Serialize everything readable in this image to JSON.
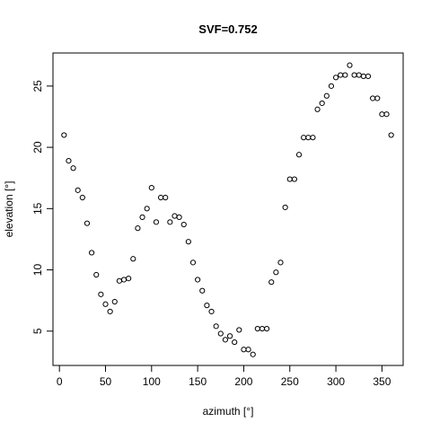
{
  "chart_data": {
    "type": "scatter",
    "title": "SVF=0.752",
    "xlabel": "azimuth [°]",
    "ylabel": "elevation [°]",
    "xlim": [
      -7,
      373
    ],
    "ylim": [
      2.2,
      27.7
    ],
    "xticks": [
      0,
      50,
      100,
      150,
      200,
      250,
      300,
      350
    ],
    "yticks": [
      5,
      10,
      15,
      20,
      25
    ],
    "grid": false,
    "marker": "open-circle",
    "x": [
      5,
      10,
      15,
      20,
      25,
      30,
      35,
      40,
      45,
      50,
      55,
      60,
      65,
      70,
      75,
      80,
      85,
      90,
      95,
      100,
      105,
      110,
      115,
      120,
      125,
      130,
      135,
      140,
      145,
      150,
      155,
      160,
      165,
      170,
      175,
      180,
      185,
      190,
      195,
      200,
      205,
      210,
      215,
      220,
      225,
      230,
      235,
      240,
      245,
      250,
      255,
      260,
      265,
      270,
      275,
      280,
      285,
      290,
      295,
      300,
      305,
      310,
      315,
      320,
      325,
      330,
      335,
      340,
      345,
      350,
      355,
      360
    ],
    "y": [
      21.0,
      18.9,
      18.3,
      16.5,
      15.9,
      13.8,
      11.4,
      9.6,
      8.0,
      7.2,
      6.6,
      7.4,
      9.1,
      9.2,
      9.3,
      10.9,
      13.4,
      14.3,
      15.0,
      16.7,
      13.9,
      15.9,
      15.9,
      13.9,
      14.4,
      14.3,
      13.7,
      12.3,
      10.6,
      9.2,
      8.3,
      7.1,
      6.6,
      5.4,
      4.8,
      4.3,
      4.6,
      4.1,
      5.1,
      3.5,
      3.5,
      3.1,
      5.2,
      5.2,
      5.2,
      9.0,
      9.8,
      10.6,
      15.1,
      17.4,
      17.4,
      19.4,
      20.8,
      20.8,
      20.8,
      23.1,
      23.6,
      24.2,
      25.0,
      25.7,
      25.9,
      25.9,
      26.7,
      25.9,
      25.9,
      25.8,
      25.8,
      24.0,
      24.0,
      22.7,
      22.7,
      21.0
    ]
  }
}
